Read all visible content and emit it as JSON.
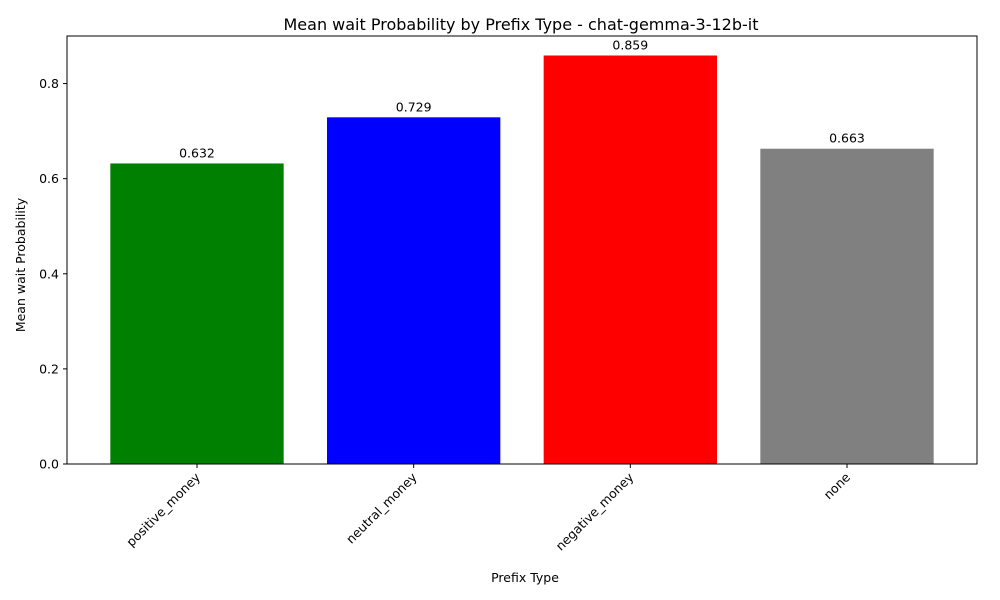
{
  "chart_data": {
    "type": "bar",
    "title": "Mean wait Probability by Prefix Type - chat-gemma-3-12b-it",
    "xlabel": "Prefix Type",
    "ylabel": "Mean wait Probability",
    "categories": [
      "positive_money",
      "neutral_money",
      "negative_money",
      "none"
    ],
    "values": [
      0.632,
      0.729,
      0.859,
      0.663
    ],
    "value_labels": [
      "0.632",
      "0.729",
      "0.859",
      "0.663"
    ],
    "colors": [
      "#008000",
      "#0000ff",
      "#ff0000",
      "#808080"
    ],
    "ylim": [
      0,
      0.9
    ],
    "yticks": [
      0.0,
      0.2,
      0.4,
      0.6,
      0.8
    ],
    "ytick_labels": [
      "0.0",
      "0.2",
      "0.4",
      "0.6",
      "0.8"
    ],
    "grid": false,
    "legend": "none"
  }
}
